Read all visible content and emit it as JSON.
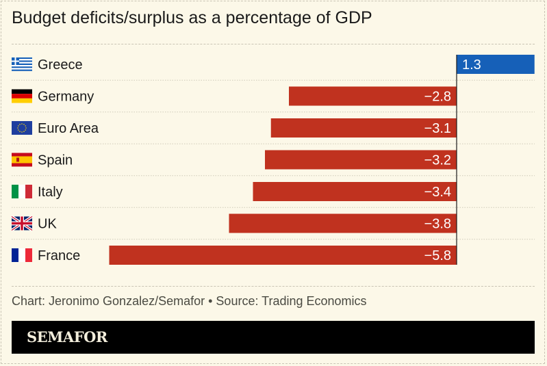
{
  "chart_data": {
    "type": "bar",
    "orientation": "horizontal",
    "title": "Budget deficits/surplus as a percentage of GDP",
    "categories": [
      "Greece",
      "Germany",
      "Euro Area",
      "Spain",
      "Italy",
      "UK",
      "France"
    ],
    "values": [
      1.3,
      -2.8,
      -3.1,
      -3.2,
      -3.4,
      -3.8,
      -5.8
    ],
    "value_labels": [
      "1.3",
      "−2.8",
      "−3.1",
      "−3.2",
      "−3.4",
      "−3.8",
      "−5.8"
    ],
    "flags": [
      "greece-flag-icon",
      "germany-flag-icon",
      "eu-flag-icon",
      "spain-flag-icon",
      "italy-flag-icon",
      "uk-flag-icon",
      "france-flag-icon"
    ],
    "colors": {
      "positive": "#1660b8",
      "negative": "#c0321f"
    },
    "xlim": [
      -5.8,
      1.3
    ],
    "xlabel": "",
    "ylabel": ""
  },
  "source": "Chart: Jeronimo Gonzalez/Semafor • Source: Trading Economics",
  "logo": "SEMAFOR"
}
